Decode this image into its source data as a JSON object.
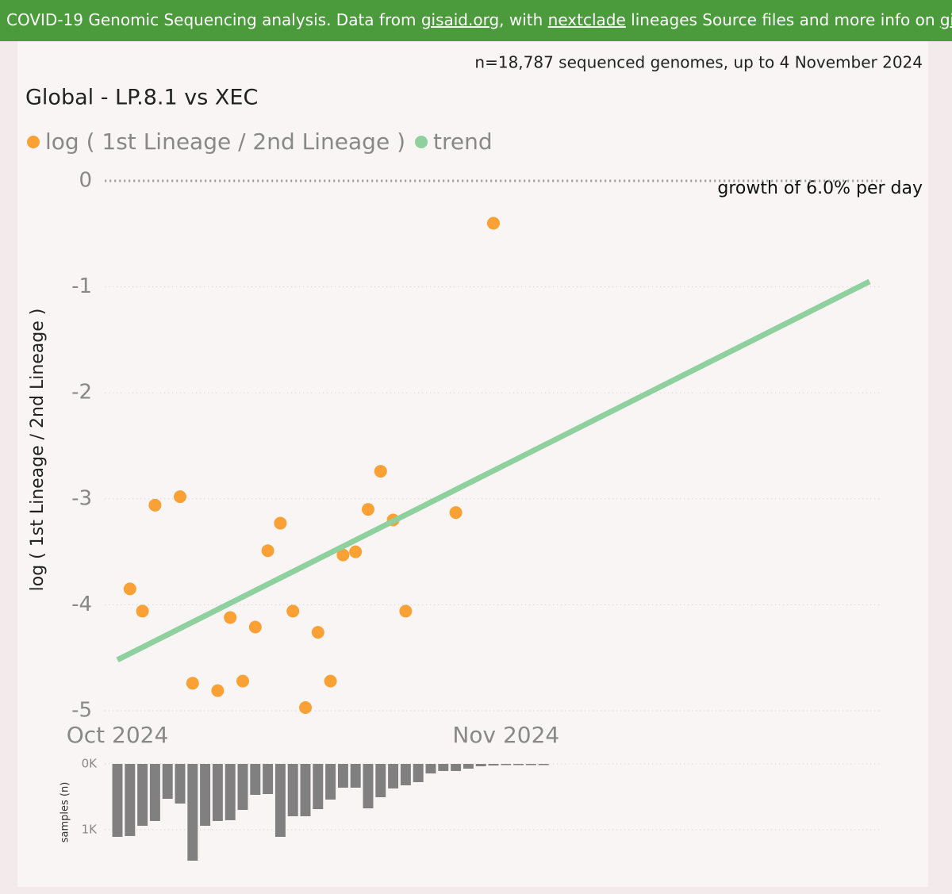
{
  "header": {
    "parts": [
      {
        "text": "COVID-19 Genomic Sequencing analysis. Data from "
      },
      {
        "text": "gisaid.org",
        "link": true
      },
      {
        "text": ", with "
      },
      {
        "text": "nextclade",
        "link": true
      },
      {
        "text": " lineages Source files and more info on "
      },
      {
        "text": "github",
        "link": true
      },
      {
        "text": "."
      }
    ]
  },
  "note": "n=18,787 sequenced genomes, up to 4 November 2024",
  "chart_data": [
    {
      "type": "scatter",
      "title": "Global - LP.8.1 vs XEC",
      "ylabel": "log ( 1st Lineage / 2nd Lineage )",
      "annotation": "growth of 6.0% per day",
      "xlim": [
        0,
        62
      ],
      "xticks": [
        {
          "value": 1,
          "label": "Oct 2024"
        },
        {
          "value": 32,
          "label": "Nov 2024"
        }
      ],
      "ylim": [
        -5.05,
        0.05
      ],
      "yticks": [
        0,
        -1,
        -2,
        -3,
        -4,
        -5
      ],
      "grid": true,
      "series": [
        {
          "name": "log ( 1st Lineage / 2nd Lineage )",
          "color": "#f9a134",
          "type": "scatter",
          "x": [
            2,
            3,
            4,
            6,
            7,
            9,
            10,
            11,
            12,
            13,
            14,
            15,
            16,
            17,
            18,
            19,
            20,
            21,
            22,
            23,
            24,
            28,
            31
          ],
          "values": [
            -3.85,
            -4.06,
            -3.06,
            -2.98,
            -4.74,
            -4.81,
            -4.12,
            -4.72,
            -4.21,
            -3.49,
            -3.23,
            -4.06,
            -4.97,
            -4.26,
            -4.72,
            -3.53,
            -3.5,
            -3.1,
            -2.74,
            -3.2,
            -4.06,
            -3.13,
            -0.4
          ]
        },
        {
          "name": "trend",
          "color": "#8fd19e",
          "type": "line",
          "x": [
            1,
            61
          ],
          "values": [
            -4.52,
            -0.95
          ]
        }
      ]
    },
    {
      "type": "bar",
      "ylabel": "samples (n)",
      "color": "#808080",
      "inverted": true,
      "xlim": [
        0,
        62
      ],
      "x": [
        1,
        2,
        3,
        4,
        5,
        6,
        7,
        8,
        9,
        10,
        11,
        12,
        13,
        14,
        15,
        16,
        17,
        18,
        19,
        20,
        21,
        22,
        23,
        24,
        25,
        26,
        27,
        28,
        29,
        30,
        31,
        32,
        33,
        34,
        35
      ],
      "values": [
        1108,
        1096,
        940,
        867,
        530,
        602,
        1470,
        940,
        867,
        855,
        699,
        470,
        458,
        1108,
        795,
        795,
        687,
        542,
        361,
        361,
        675,
        506,
        373,
        325,
        277,
        145,
        108,
        108,
        72,
        36,
        24,
        5,
        5,
        5,
        5
      ],
      "ylim": [
        0,
        1500
      ],
      "yticks": [
        {
          "value": 0,
          "label": "0K"
        },
        {
          "value": 1000,
          "label": "1K"
        }
      ],
      "grid": true
    }
  ]
}
